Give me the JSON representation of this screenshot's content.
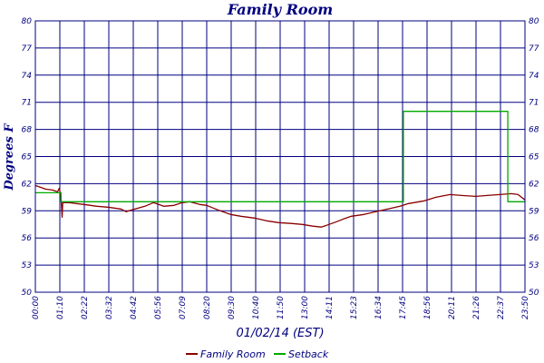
{
  "chart_data": {
    "type": "line",
    "title": "Family Room",
    "xlabel": "01/02/14 (EST)",
    "ylabel": "Degrees F",
    "ylim": [
      50,
      80
    ],
    "yticks": [
      50,
      53,
      56,
      59,
      62,
      65,
      68,
      71,
      74,
      77,
      80
    ],
    "xlim_minutes": [
      0,
      1430
    ],
    "xtick_labels": [
      "00:00",
      "01:10",
      "02:22",
      "03:32",
      "04:42",
      "05:56",
      "07:09",
      "08:20",
      "09:30",
      "10:40",
      "11:50",
      "13:00",
      "14:11",
      "15:23",
      "16:34",
      "17:45",
      "18:56",
      "20:11",
      "21:26",
      "22:37",
      "23:50"
    ],
    "grid": true,
    "legend_position": "bottom",
    "series": [
      {
        "name": "Family Room",
        "color": "#8b0000",
        "points": [
          {
            "x": "00:00",
            "y": 61.8
          },
          {
            "x": "00:30",
            "y": 61.4
          },
          {
            "x": "00:50",
            "y": 61.3
          },
          {
            "x": "01:05",
            "y": 61.1
          },
          {
            "x": "01:10",
            "y": 61.5
          },
          {
            "x": "01:15",
            "y": 60.5
          },
          {
            "x": "01:18",
            "y": 58.3
          },
          {
            "x": "01:20",
            "y": 59.9
          },
          {
            "x": "01:40",
            "y": 59.9
          },
          {
            "x": "02:00",
            "y": 59.8
          },
          {
            "x": "02:22",
            "y": 59.7
          },
          {
            "x": "03:00",
            "y": 59.5
          },
          {
            "x": "03:32",
            "y": 59.4
          },
          {
            "x": "04:10",
            "y": 59.2
          },
          {
            "x": "04:25",
            "y": 58.9
          },
          {
            "x": "04:42",
            "y": 59.1
          },
          {
            "x": "05:20",
            "y": 59.5
          },
          {
            "x": "05:45",
            "y": 59.9
          },
          {
            "x": "06:15",
            "y": 59.5
          },
          {
            "x": "06:45",
            "y": 59.6
          },
          {
            "x": "07:09",
            "y": 59.9
          },
          {
            "x": "07:30",
            "y": 60.0
          },
          {
            "x": "08:00",
            "y": 59.7
          },
          {
            "x": "08:20",
            "y": 59.6
          },
          {
            "x": "09:00",
            "y": 59.0
          },
          {
            "x": "09:30",
            "y": 58.6
          },
          {
            "x": "10:00",
            "y": 58.4
          },
          {
            "x": "10:40",
            "y": 58.2
          },
          {
            "x": "11:15",
            "y": 57.9
          },
          {
            "x": "11:50",
            "y": 57.7
          },
          {
            "x": "12:30",
            "y": 57.6
          },
          {
            "x": "13:00",
            "y": 57.5
          },
          {
            "x": "13:30",
            "y": 57.3
          },
          {
            "x": "13:55",
            "y": 57.2
          },
          {
            "x": "14:11",
            "y": 57.4
          },
          {
            "x": "14:40",
            "y": 57.8
          },
          {
            "x": "15:00",
            "y": 58.1
          },
          {
            "x": "15:23",
            "y": 58.4
          },
          {
            "x": "16:00",
            "y": 58.6
          },
          {
            "x": "16:34",
            "y": 58.9
          },
          {
            "x": "17:10",
            "y": 59.2
          },
          {
            "x": "17:45",
            "y": 59.5
          },
          {
            "x": "18:10",
            "y": 59.8
          },
          {
            "x": "18:56",
            "y": 60.1
          },
          {
            "x": "19:30",
            "y": 60.5
          },
          {
            "x": "20:11",
            "y": 60.8
          },
          {
            "x": "20:45",
            "y": 60.7
          },
          {
            "x": "21:26",
            "y": 60.6
          },
          {
            "x": "22:00",
            "y": 60.7
          },
          {
            "x": "22:37",
            "y": 60.8
          },
          {
            "x": "23:10",
            "y": 60.9
          },
          {
            "x": "23:30",
            "y": 60.8
          },
          {
            "x": "23:50",
            "y": 60.2
          }
        ]
      },
      {
        "name": "Setback",
        "color": "#00aa00",
        "points": [
          {
            "x": "00:00",
            "y": 61.0
          },
          {
            "x": "01:15",
            "y": 61.0
          },
          {
            "x": "01:15",
            "y": 60.0
          },
          {
            "x": "17:55",
            "y": 60.0
          },
          {
            "x": "17:55",
            "y": 70.0
          },
          {
            "x": "23:00",
            "y": 70.0
          },
          {
            "x": "23:00",
            "y": 60.0
          },
          {
            "x": "23:50",
            "y": 60.0
          }
        ]
      }
    ]
  }
}
